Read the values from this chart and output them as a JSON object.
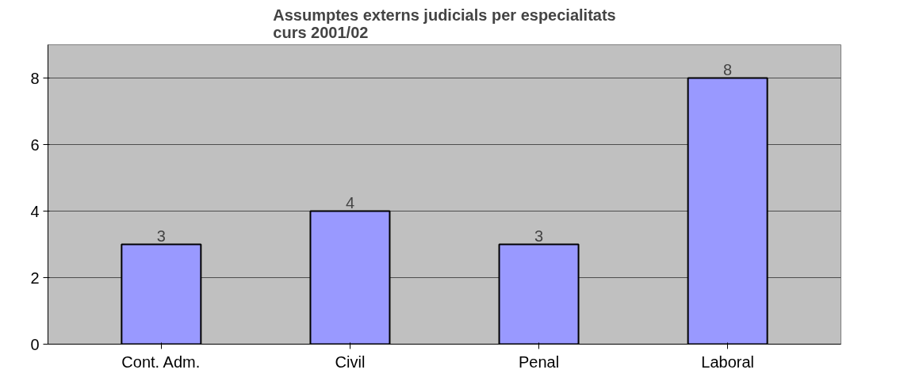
{
  "chart_data": {
    "type": "bar",
    "title": "Assumptes externs judicials per especialitats\ncurs 2001/02",
    "categories": [
      "Cont. Adm.",
      "Civil",
      "Penal",
      "Laboral"
    ],
    "values": [
      3,
      4,
      3,
      8
    ],
    "color": "#9999ff",
    "ylim": [
      0,
      9
    ],
    "yticks": [
      0,
      2,
      4,
      6,
      8
    ],
    "grid": "y",
    "data_labels": true
  }
}
